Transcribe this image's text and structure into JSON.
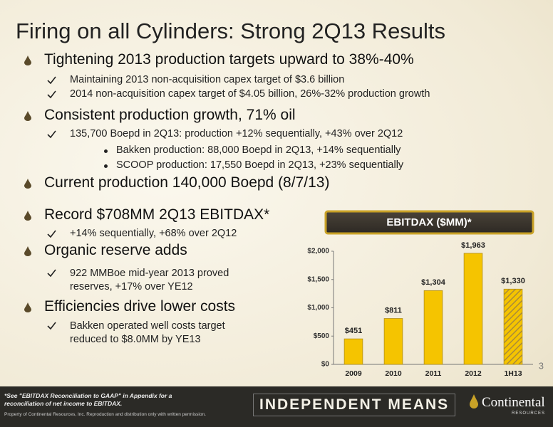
{
  "title": "Firing on all Cylinders: Strong 2Q13 Results",
  "sections": [
    {
      "heading": "Tightening 2013 production targets upward to 38%-40%",
      "items": [
        {
          "text": "Maintaining 2013 non-acquisition capex target of $3.6 billion"
        },
        {
          "text": "2014 non-acquisition capex target of $4.05 billion, 26%-32% production growth"
        }
      ]
    },
    {
      "heading": "Consistent production growth, 71% oil",
      "items": [
        {
          "text": "135,700 Boepd in 2Q13: production +12% sequentially, +43% over 2Q12",
          "subitems": [
            "Bakken production: 88,000 Boepd in 2Q13, +14% sequentially",
            "SCOOP production: 17,550 Boepd in 2Q13, +23% sequentially"
          ]
        }
      ]
    },
    {
      "heading": "Current production 140,000 Boepd (8/7/13)"
    },
    {
      "heading": "Record $708MM 2Q13 EBITDAX*",
      "items": [
        {
          "text": "+14% sequentially, +68% over 2Q12"
        }
      ]
    },
    {
      "heading": "Organic reserve adds",
      "items": [
        {
          "text": "922 MMBoe mid-year 2013 proved reserves, +17% over YE12"
        }
      ]
    },
    {
      "heading": "Efficiencies drive lower costs",
      "items": [
        {
          "text": "Bakken operated well costs target reduced to $8.0MM by YE13"
        }
      ]
    }
  ],
  "chart_data": {
    "type": "bar",
    "title": "EBITDAX ($MM)*",
    "categories": [
      "2009",
      "2010",
      "2011",
      "2012",
      "1H13"
    ],
    "values": [
      451,
      811,
      1304,
      1963,
      1330
    ],
    "value_labels": [
      "$451",
      "$811",
      "$1,304",
      "$1,963",
      "$1,330"
    ],
    "hatched": [
      false,
      false,
      false,
      false,
      true
    ],
    "color": "#f5c400",
    "ylim": [
      0,
      2000
    ],
    "yticks": [
      {
        "value": 0,
        "label": "$0"
      },
      {
        "value": 500,
        "label": "$500"
      },
      {
        "value": 1000,
        "label": "$1,000"
      },
      {
        "value": 1500,
        "label": "$1,500"
      },
      {
        "value": 2000,
        "label": "$2,000"
      }
    ]
  },
  "page_number": "3",
  "footer": {
    "note": "*See \"EBITDAX Reconciliation to GAAP\" in Appendix for a reconciliation of net income to EBITDAX.",
    "copyright": "Property of Continental Resources, Inc. Reproduction and distribution only with written permission.",
    "tagline": "INDEPENDENT MEANS",
    "logo": "Continental",
    "logo_sub": "RESOURCES"
  }
}
